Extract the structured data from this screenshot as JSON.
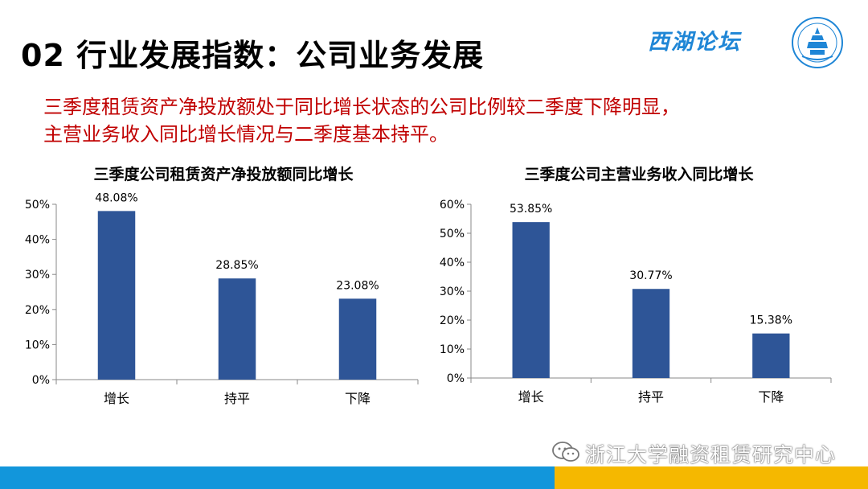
{
  "header": {
    "title": "02 行业发展指数：公司业务发展",
    "brand": "西湖论坛"
  },
  "subtitle": [
    "三季度租赁资产净投放额处于同比增长状态的公司比例较二季度下降明显，",
    "主营业务收入同比增长情况与二季度基本持平。"
  ],
  "footer": {
    "watermark": "浙江大学融资租赁研究中心"
  },
  "colors": {
    "bar": "#2e5597",
    "accent_red": "#c00000",
    "footer_blue": "#1296db",
    "footer_yellow": "#f5b800"
  },
  "chart_data": [
    {
      "type": "bar",
      "title": "三季度公司租赁资产净投放额同比增长",
      "categories": [
        "增长",
        "持平",
        "下降"
      ],
      "values": [
        48.08,
        28.85,
        23.08
      ],
      "value_labels": [
        "48.08%",
        "28.85%",
        "23.08%"
      ],
      "ylim": [
        0,
        50
      ],
      "yticks": [
        "0%",
        "10%",
        "20%",
        "30%",
        "40%",
        "50%"
      ],
      "grid": false
    },
    {
      "type": "bar",
      "title": "三季度公司主营业务收入同比增长",
      "categories": [
        "增长",
        "持平",
        "下降"
      ],
      "values": [
        53.85,
        30.77,
        15.38
      ],
      "value_labels": [
        "53.85%",
        "30.77%",
        "15.38%"
      ],
      "ylim": [
        0,
        60
      ],
      "yticks": [
        "0%",
        "10%",
        "20%",
        "30%",
        "40%",
        "50%",
        "60%"
      ],
      "grid": false
    }
  ]
}
